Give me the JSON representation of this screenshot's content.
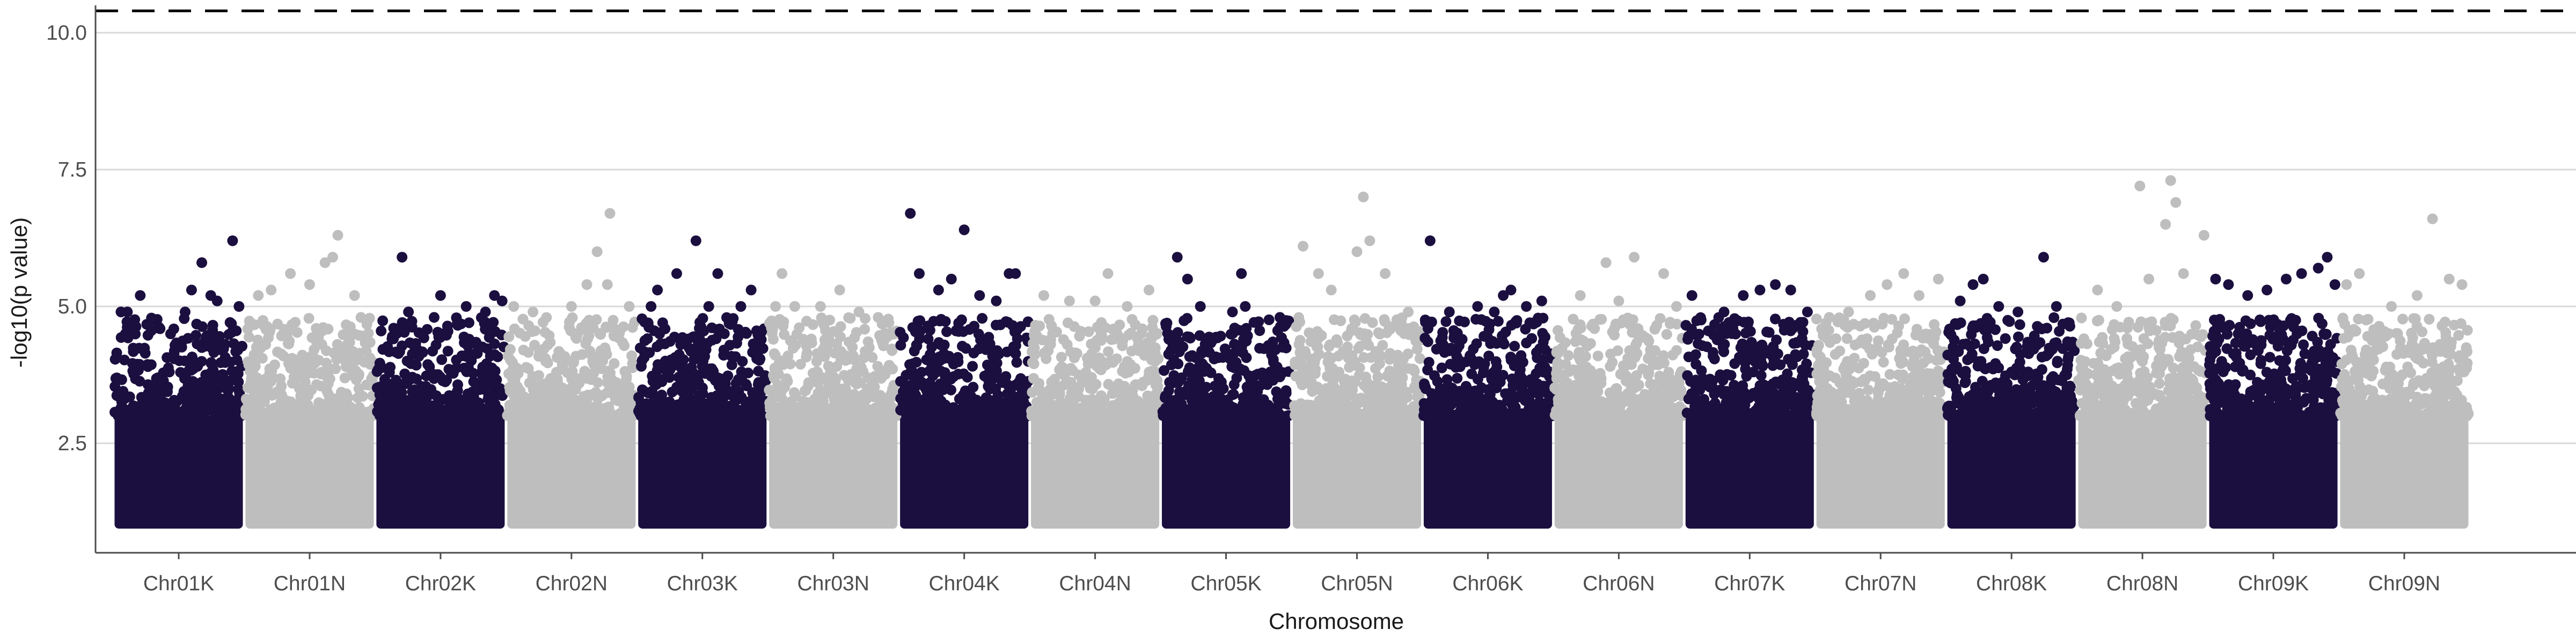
{
  "chart_data": {
    "type": "scatter",
    "subtype": "manhattan",
    "title": "",
    "xlabel": "Chromosome",
    "ylabel": "-log10(p value)",
    "ylim": [
      0.5,
      10.5
    ],
    "yticks": [
      2.5,
      5.0,
      7.5,
      10.0
    ],
    "ytick_labels": [
      "2.5",
      "5.0",
      "7.5",
      "10.0"
    ],
    "grid": "horizontal major",
    "legend": "none",
    "threshold_line": {
      "value": 10.4,
      "style": "dashed",
      "color": "#000000"
    },
    "point_min_value": 1.0,
    "colors": {
      "odd": "#1b0f3f",
      "even": "#bebebe",
      "grid": "#d9d9d9",
      "axis": "#4d4d4d"
    },
    "categories": [
      "Chr01K",
      "Chr01N",
      "Chr02K",
      "Chr02N",
      "Chr03K",
      "Chr03N",
      "Chr04K",
      "Chr04N",
      "Chr05K",
      "Chr05N",
      "Chr06K",
      "Chr06N",
      "Chr07K",
      "Chr07N",
      "Chr08K",
      "Chr08N",
      "Chr09K",
      "Chr09N"
    ],
    "series": [
      {
        "category": "Chr01K",
        "color": "#1b0f3f",
        "points": [
          [
            0.05,
            4.9
          ],
          [
            0.1,
            4.9
          ],
          [
            0.2,
            5.2
          ],
          [
            0.35,
            4.6
          ],
          [
            0.55,
            4.9
          ],
          [
            0.6,
            5.3
          ],
          [
            0.68,
            5.8
          ],
          [
            0.75,
            5.2
          ],
          [
            0.8,
            5.1
          ],
          [
            0.92,
            6.2
          ],
          [
            0.97,
            5.0
          ]
        ]
      },
      {
        "category": "Chr01N",
        "color": "#bebebe",
        "points": [
          [
            0.1,
            5.2
          ],
          [
            0.2,
            5.3
          ],
          [
            0.35,
            5.6
          ],
          [
            0.5,
            5.4
          ],
          [
            0.62,
            5.8
          ],
          [
            0.68,
            5.9
          ],
          [
            0.72,
            6.3
          ],
          [
            0.85,
            5.2
          ],
          [
            0.9,
            4.8
          ]
        ]
      },
      {
        "category": "Chr02K",
        "color": "#1b0f3f",
        "points": [
          [
            0.2,
            5.9
          ],
          [
            0.25,
            4.9
          ],
          [
            0.45,
            4.8
          ],
          [
            0.5,
            5.2
          ],
          [
            0.7,
            5.0
          ],
          [
            0.85,
            4.9
          ],
          [
            0.92,
            5.2
          ],
          [
            0.98,
            5.1
          ]
        ]
      },
      {
        "category": "Chr02N",
        "color": "#bebebe",
        "points": [
          [
            0.05,
            5.0
          ],
          [
            0.2,
            4.9
          ],
          [
            0.5,
            5.0
          ],
          [
            0.62,
            5.4
          ],
          [
            0.7,
            6.0
          ],
          [
            0.78,
            5.4
          ],
          [
            0.8,
            6.7
          ],
          [
            0.95,
            5.0
          ]
        ]
      },
      {
        "category": "Chr03K",
        "color": "#1b0f3f",
        "points": [
          [
            0.1,
            5.0
          ],
          [
            0.15,
            5.3
          ],
          [
            0.3,
            5.6
          ],
          [
            0.45,
            6.2
          ],
          [
            0.55,
            5.0
          ],
          [
            0.62,
            5.6
          ],
          [
            0.8,
            5.0
          ],
          [
            0.88,
            5.3
          ]
        ]
      },
      {
        "category": "Chr03N",
        "color": "#bebebe",
        "points": [
          [
            0.05,
            5.0
          ],
          [
            0.1,
            5.6
          ],
          [
            0.2,
            5.0
          ],
          [
            0.4,
            5.0
          ],
          [
            0.55,
            5.3
          ],
          [
            0.7,
            4.9
          ],
          [
            0.85,
            4.8
          ]
        ]
      },
      {
        "category": "Chr04K",
        "color": "#1b0f3f",
        "points": [
          [
            0.08,
            6.7
          ],
          [
            0.15,
            5.6
          ],
          [
            0.3,
            5.3
          ],
          [
            0.4,
            5.5
          ],
          [
            0.5,
            6.4
          ],
          [
            0.62,
            5.2
          ],
          [
            0.75,
            5.1
          ],
          [
            0.85,
            5.6
          ],
          [
            0.9,
            5.6
          ]
        ]
      },
      {
        "category": "Chr04N",
        "color": "#bebebe",
        "points": [
          [
            0.1,
            5.2
          ],
          [
            0.3,
            5.1
          ],
          [
            0.5,
            5.1
          ],
          [
            0.6,
            5.6
          ],
          [
            0.75,
            5.0
          ],
          [
            0.92,
            5.3
          ]
        ]
      },
      {
        "category": "Chr05K",
        "color": "#1b0f3f",
        "points": [
          [
            0.12,
            5.9
          ],
          [
            0.2,
            5.5
          ],
          [
            0.3,
            5.0
          ],
          [
            0.55,
            4.9
          ],
          [
            0.65,
            5.0
          ],
          [
            0.62,
            5.6
          ],
          [
            0.92,
            4.8
          ]
        ]
      },
      {
        "category": "Chr05N",
        "color": "#bebebe",
        "points": [
          [
            0.08,
            6.1
          ],
          [
            0.2,
            5.6
          ],
          [
            0.3,
            5.3
          ],
          [
            0.5,
            6.0
          ],
          [
            0.55,
            7.0
          ],
          [
            0.6,
            6.2
          ],
          [
            0.72,
            5.6
          ],
          [
            0.9,
            4.9
          ]
        ]
      },
      {
        "category": "Chr06K",
        "color": "#1b0f3f",
        "points": [
          [
            0.05,
            6.2
          ],
          [
            0.2,
            4.9
          ],
          [
            0.42,
            5.0
          ],
          [
            0.55,
            4.9
          ],
          [
            0.62,
            5.2
          ],
          [
            0.68,
            5.3
          ],
          [
            0.8,
            5.0
          ],
          [
            0.92,
            5.1
          ]
        ]
      },
      {
        "category": "Chr06N",
        "color": "#bebebe",
        "points": [
          [
            0.2,
            5.2
          ],
          [
            0.4,
            5.8
          ],
          [
            0.5,
            5.1
          ],
          [
            0.62,
            5.9
          ],
          [
            0.85,
            5.6
          ],
          [
            0.95,
            5.0
          ]
        ]
      },
      {
        "category": "Chr07K",
        "color": "#1b0f3f",
        "points": [
          [
            0.05,
            5.2
          ],
          [
            0.3,
            4.9
          ],
          [
            0.45,
            5.2
          ],
          [
            0.58,
            5.3
          ],
          [
            0.7,
            5.4
          ],
          [
            0.82,
            5.3
          ],
          [
            0.95,
            4.9
          ]
        ]
      },
      {
        "category": "Chr07N",
        "color": "#bebebe",
        "points": [
          [
            0.1,
            4.8
          ],
          [
            0.25,
            4.9
          ],
          [
            0.42,
            5.2
          ],
          [
            0.55,
            5.4
          ],
          [
            0.68,
            5.6
          ],
          [
            0.8,
            5.2
          ],
          [
            0.95,
            5.5
          ]
        ]
      },
      {
        "category": "Chr08K",
        "color": "#1b0f3f",
        "points": [
          [
            0.1,
            5.1
          ],
          [
            0.2,
            5.4
          ],
          [
            0.28,
            5.5
          ],
          [
            0.4,
            5.0
          ],
          [
            0.55,
            4.9
          ],
          [
            0.75,
            5.9
          ],
          [
            0.85,
            5.0
          ],
          [
            0.95,
            4.7
          ]
        ]
      },
      {
        "category": "Chr08N",
        "color": "#bebebe",
        "points": [
          [
            0.15,
            5.3
          ],
          [
            0.3,
            5.0
          ],
          [
            0.48,
            7.2
          ],
          [
            0.55,
            5.5
          ],
          [
            0.68,
            6.5
          ],
          [
            0.72,
            7.3
          ],
          [
            0.76,
            6.9
          ],
          [
            0.82,
            5.6
          ],
          [
            0.98,
            6.3
          ]
        ]
      },
      {
        "category": "Chr09K",
        "color": "#1b0f3f",
        "points": [
          [
            0.05,
            5.5
          ],
          [
            0.15,
            5.4
          ],
          [
            0.3,
            5.2
          ],
          [
            0.45,
            5.3
          ],
          [
            0.6,
            5.5
          ],
          [
            0.72,
            5.6
          ],
          [
            0.85,
            5.7
          ],
          [
            0.92,
            5.9
          ],
          [
            0.98,
            5.4
          ]
        ]
      },
      {
        "category": "Chr09N",
        "color": "#bebebe",
        "points": [
          [
            0.05,
            5.4
          ],
          [
            0.15,
            5.6
          ],
          [
            0.4,
            5.0
          ],
          [
            0.6,
            5.2
          ],
          [
            0.72,
            6.6
          ],
          [
            0.85,
            5.5
          ],
          [
            0.95,
            5.4
          ]
        ]
      }
    ]
  }
}
